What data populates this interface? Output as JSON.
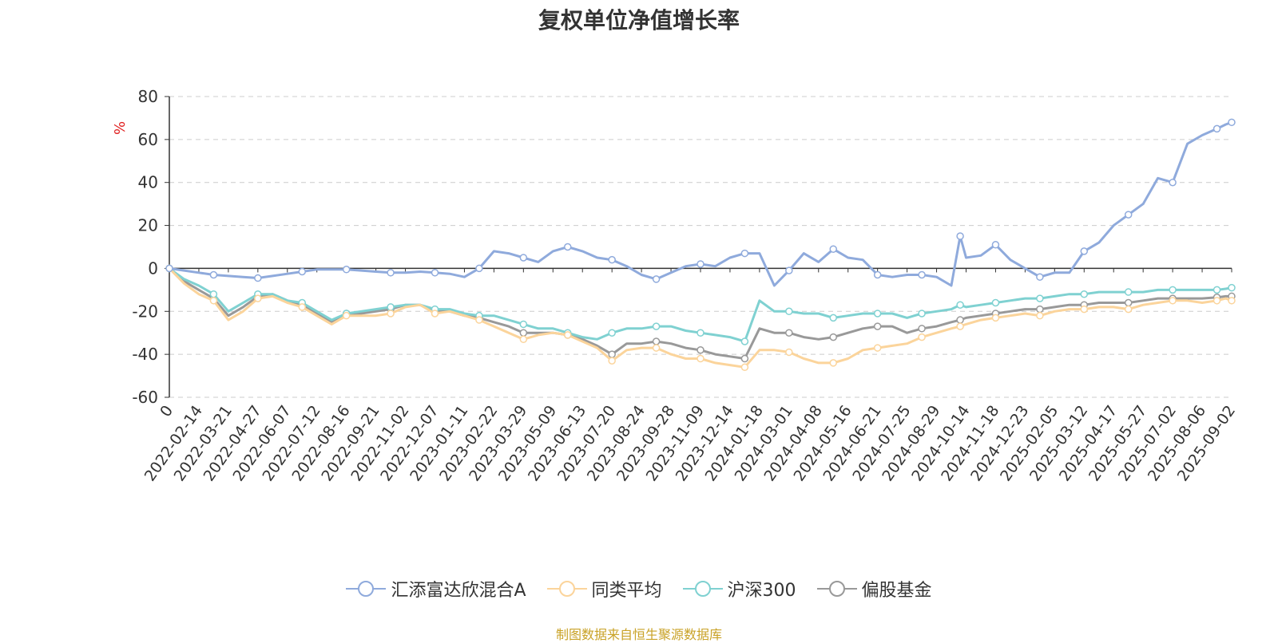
{
  "chart_data": {
    "type": "line",
    "title": "复权单位净值增长率",
    "ylabel": "%",
    "ylim": [
      -60,
      80
    ],
    "yticks": [
      80,
      60,
      40,
      20,
      0,
      -20,
      -40,
      -60
    ],
    "grid": true,
    "legend_position": "bottom",
    "x_labels": [
      "0",
      "2022-02-14",
      "2022-03-21",
      "2022-04-27",
      "2022-06-07",
      "2022-07-12",
      "2022-08-16",
      "2022-09-21",
      "2022-11-02",
      "2022-12-07",
      "2023-01-11",
      "2023-02-22",
      "2023-03-29",
      "2023-05-09",
      "2023-06-13",
      "2023-07-20",
      "2023-08-24",
      "2023-09-28",
      "2023-11-09",
      "2023-12-14",
      "2024-01-18",
      "2024-03-01",
      "2024-04-08",
      "2024-05-16",
      "2024-06-21",
      "2024-07-25",
      "2024-08-29",
      "2024-10-14",
      "2024-11-18",
      "2024-12-23",
      "2025-02-05",
      "2025-03-12",
      "2025-04-17",
      "2025-05-27",
      "2025-07-02",
      "2025-08-06",
      "2025-09-02"
    ],
    "x": [
      0,
      0.5,
      1,
      1.5,
      2,
      2.5,
      3,
      3.5,
      4,
      4.5,
      5,
      5.5,
      6,
      6.5,
      7,
      7.5,
      8,
      8.5,
      9,
      9.5,
      10,
      10.5,
      11,
      11.5,
      12,
      12.5,
      13,
      13.5,
      14,
      14.5,
      15,
      15.5,
      16,
      16.5,
      17,
      17.5,
      18,
      18.5,
      19,
      19.5,
      20,
      20.5,
      21,
      21.5,
      22,
      22.5,
      23,
      23.5,
      24,
      24.5,
      25,
      25.5,
      26,
      26.5,
      26.8,
      27,
      27.5,
      28,
      28.5,
      29,
      29.5,
      30,
      30.5,
      31,
      31.5,
      32,
      32.5,
      33,
      33.5,
      34,
      34.5,
      35,
      35.5,
      35.8,
      36
    ],
    "series": [
      {
        "name": "汇添富达欣混合A",
        "color": "#8faadc",
        "values": [
          0,
          -1,
          -2,
          -3,
          -3.5,
          -4,
          -4.5,
          -3.5,
          -2.5,
          -1.5,
          -0.5,
          -0.5,
          -0.5,
          -1,
          -1.5,
          -2,
          -2,
          -1.5,
          -2,
          -2.5,
          -4,
          0,
          8,
          7,
          5,
          3,
          8,
          10,
          8,
          5,
          4,
          1,
          -3,
          -5,
          -2,
          1,
          2,
          1,
          5,
          7,
          7,
          -8,
          -1,
          7,
          3,
          9,
          5,
          4,
          -3,
          -4,
          -3,
          -3,
          -4,
          -8,
          15,
          5,
          6,
          11,
          4,
          0,
          -4,
          -2,
          -2,
          8,
          12,
          20,
          25,
          30,
          42,
          40,
          58,
          62,
          65,
          67,
          68
        ]
      },
      {
        "name": "同类平均",
        "color": "#fbd49b",
        "values": [
          0,
          -7,
          -12,
          -15,
          -24,
          -20,
          -14,
          -13,
          -16,
          -18,
          -22,
          -26,
          -22,
          -22,
          -22,
          -21,
          -18,
          -17,
          -21,
          -20,
          -22,
          -24,
          -27,
          -30,
          -33,
          -31,
          -30,
          -31,
          -34,
          -37,
          -43,
          -38,
          -37,
          -37,
          -40,
          -42,
          -42,
          -44,
          -45,
          -46,
          -38,
          -38,
          -39,
          -42,
          -44,
          -44,
          -42,
          -38,
          -37,
          -36,
          -35,
          -32,
          -30,
          -28,
          -27,
          -26,
          -24,
          -23,
          -22,
          -21,
          -22,
          -20,
          -19,
          -19,
          -18,
          -18,
          -19,
          -17,
          -16,
          -15,
          -15,
          -16,
          -15,
          -14,
          -15
        ]
      },
      {
        "name": "沪深300",
        "color": "#7fd1d1",
        "values": [
          0,
          -5,
          -8,
          -12,
          -20,
          -16,
          -12,
          -12,
          -15,
          -16,
          -20,
          -24,
          -21,
          -20,
          -19,
          -18,
          -17,
          -17,
          -19,
          -19,
          -21,
          -22,
          -22,
          -24,
          -26,
          -28,
          -28,
          -30,
          -32,
          -33,
          -30,
          -28,
          -28,
          -27,
          -27,
          -29,
          -30,
          -31,
          -32,
          -34,
          -15,
          -20,
          -20,
          -21,
          -21,
          -23,
          -22,
          -21,
          -21,
          -21,
          -23,
          -21,
          -20,
          -19,
          -17,
          -18,
          -17,
          -16,
          -15,
          -14,
          -14,
          -13,
          -12,
          -12,
          -11,
          -11,
          -11,
          -11,
          -10,
          -10,
          -10,
          -10,
          -10,
          -9.5,
          -9
        ]
      },
      {
        "name": "偏股基金",
        "color": "#999999",
        "values": [
          0,
          -6,
          -10,
          -14,
          -22,
          -18,
          -13,
          -12,
          -15,
          -17,
          -21,
          -25,
          -21,
          -21,
          -20,
          -19,
          -17,
          -17,
          -20,
          -20,
          -22,
          -23,
          -25,
          -27,
          -30,
          -30,
          -30,
          -31,
          -33,
          -36,
          -40,
          -35,
          -35,
          -34,
          -35,
          -37,
          -38,
          -40,
          -41,
          -42,
          -28,
          -30,
          -30,
          -32,
          -33,
          -32,
          -30,
          -28,
          -27,
          -27,
          -30,
          -28,
          -27,
          -25,
          -24,
          -23,
          -22,
          -21,
          -20,
          -19,
          -19,
          -18,
          -17,
          -17,
          -16,
          -16,
          -16,
          -15,
          -14,
          -14,
          -14,
          -14,
          -13.5,
          -13,
          -13
        ]
      }
    ]
  },
  "source_text": "制图数据来自恒生聚源数据库",
  "source_color": "#c9a227",
  "ylabel_color": "#e02020"
}
